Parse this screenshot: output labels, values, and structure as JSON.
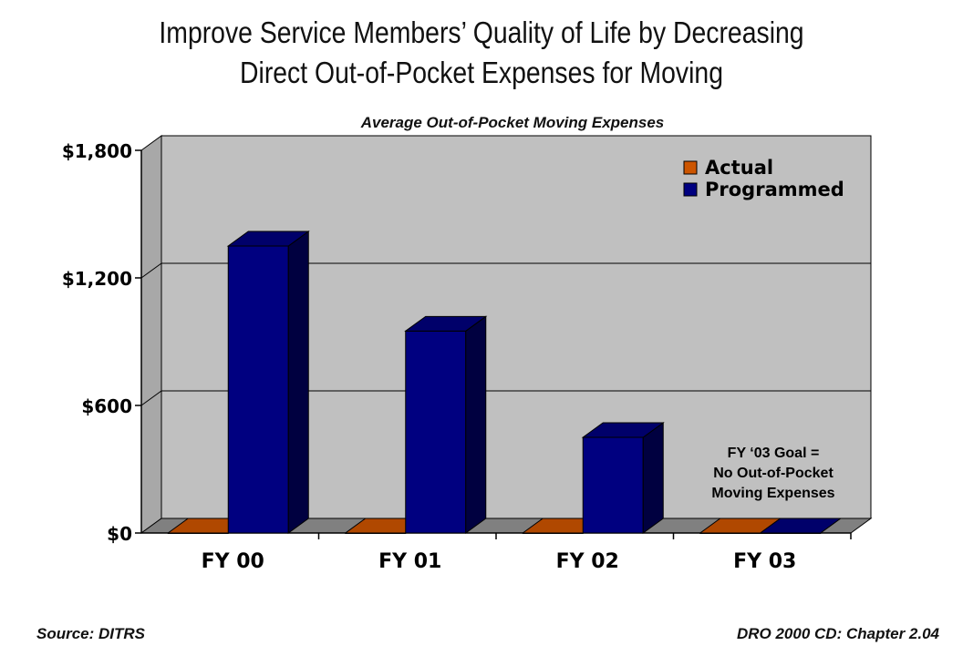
{
  "title": {
    "line1": "Improve Service Members’ Quality of Life by Decreasing",
    "line2": "Direct Out-of-Pocket Expenses for Moving"
  },
  "footer": {
    "source": "Source:  DITRS",
    "reference": "DRO 2000 CD: Chapter 2.04"
  },
  "chart_data": {
    "type": "bar",
    "subtitle": "Average Out-of-Pocket Moving Expenses",
    "categories": [
      "FY 00",
      "FY 01",
      "FY 02",
      "FY 03"
    ],
    "series": [
      {
        "name": "Actual",
        "values": [
          0,
          0,
          0,
          0
        ],
        "color": "#cc5500"
      },
      {
        "name": "Programmed",
        "values": [
          1350,
          950,
          450,
          0
        ],
        "color": "#000080"
      }
    ],
    "yticks": [
      "$0",
      "$600",
      "$1,200",
      "$1,800"
    ],
    "ytick_values": [
      0,
      600,
      1200,
      1800
    ],
    "ylim": [
      0,
      1800
    ],
    "grid": true,
    "legend": "top-right",
    "style": "3d",
    "annotation": [
      "FY ‘03 Goal =",
      "No Out-of-Pocket",
      "Moving Expenses"
    ],
    "colors": {
      "wall": "#c0c0c0",
      "floor": "#808080",
      "axis": "#000000"
    }
  }
}
